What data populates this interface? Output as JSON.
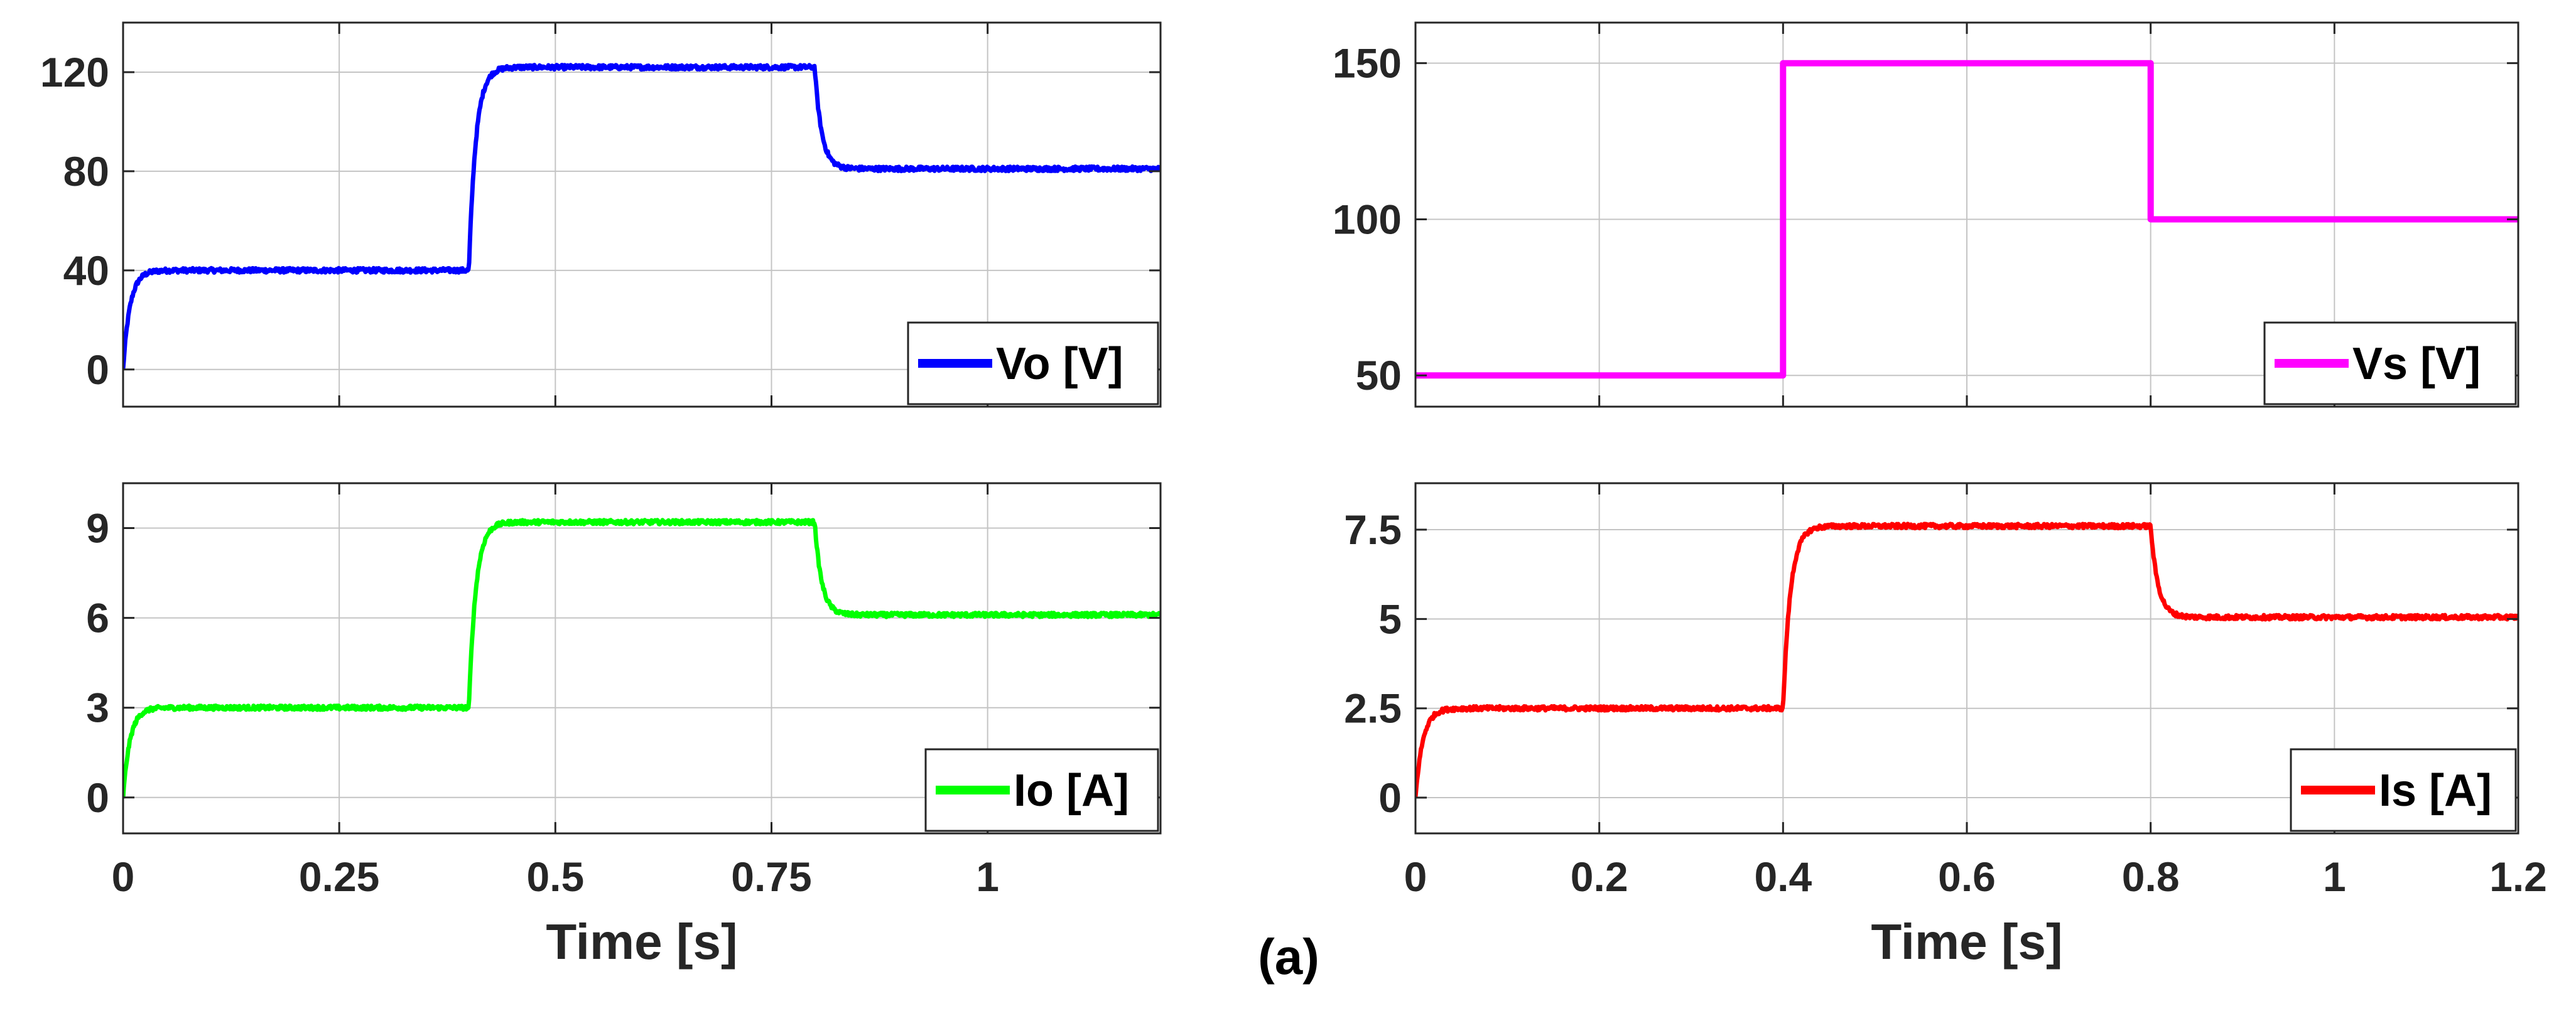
{
  "figure_caption": "(a)",
  "chart_data": [
    {
      "type": "line",
      "id": "vo",
      "color": "#0000ff",
      "legend": "Vo [V]",
      "legend_position": "bottom-right",
      "grid": true,
      "xlabel": "",
      "xlim": [
        0,
        1.2
      ],
      "xticks": [
        0,
        0.25,
        0.5,
        0.75,
        1
      ],
      "xtick_labels_shown": false,
      "ylim": [
        -15,
        140
      ],
      "yticks": [
        0,
        40,
        80,
        120
      ],
      "ytick_labels": [
        "0",
        "40",
        "80",
        "120"
      ],
      "segments": [
        {
          "t_start": 0,
          "t_end": 0.4,
          "from": 0,
          "to": 40,
          "tau": 0.008
        },
        {
          "t_start": 0.4,
          "t_end": 0.8,
          "from": 40,
          "to": 122,
          "tau": 0.008
        },
        {
          "t_start": 0.8,
          "t_end": 1.2,
          "from": 122,
          "to": 81,
          "tau": 0.008
        }
      ],
      "noise": 0.9
    },
    {
      "type": "line",
      "id": "vs",
      "color": "#ff00ff",
      "legend": "Vs [V]",
      "legend_position": "bottom-right",
      "grid": true,
      "xlabel": "",
      "xlim": [
        0,
        1.2
      ],
      "xticks": [
        0,
        0.2,
        0.4,
        0.6,
        0.8,
        1,
        1.2
      ],
      "xtick_labels_shown": false,
      "ylim": [
        40,
        163
      ],
      "yticks": [
        50,
        100,
        150
      ],
      "ytick_labels": [
        "50",
        "100",
        "150"
      ],
      "segments": [
        {
          "t_start": 0,
          "t_end": 0.4,
          "from": 50,
          "to": 50,
          "tau": 0
        },
        {
          "t_start": 0.4,
          "t_end": 0.8,
          "from": 150,
          "to": 150,
          "tau": 0
        },
        {
          "t_start": 0.8,
          "t_end": 1.2,
          "from": 100,
          "to": 100,
          "tau": 0
        }
      ],
      "noise": 0
    },
    {
      "type": "line",
      "id": "io",
      "color": "#00ff00",
      "legend": "Io [A]",
      "legend_position": "bottom-right",
      "grid": true,
      "xlabel": "Time [s]",
      "xlim": [
        0,
        1.2
      ],
      "xticks": [
        0,
        0.25,
        0.5,
        0.75,
        1
      ],
      "xtick_labels": [
        "0",
        "0.25",
        "0.5",
        "0.75",
        "1"
      ],
      "xtick_labels_shown": true,
      "ylim": [
        -1.2,
        10.5
      ],
      "yticks": [
        0,
        3,
        6,
        9
      ],
      "ytick_labels": [
        "0",
        "3",
        "6",
        "9"
      ],
      "segments": [
        {
          "t_start": 0,
          "t_end": 0.4,
          "from": 0,
          "to": 3,
          "tau": 0.008
        },
        {
          "t_start": 0.4,
          "t_end": 0.8,
          "from": 3,
          "to": 9.2,
          "tau": 0.008
        },
        {
          "t_start": 0.8,
          "t_end": 1.2,
          "from": 9.2,
          "to": 6.1,
          "tau": 0.008
        }
      ],
      "noise": 0.07
    },
    {
      "type": "line",
      "id": "is",
      "color": "#ff0000",
      "legend": "Is [A]",
      "legend_position": "bottom-right",
      "grid": true,
      "xlabel": "Time [s]",
      "xlim": [
        0,
        1.2
      ],
      "xticks": [
        0,
        0.2,
        0.4,
        0.6,
        0.8,
        1,
        1.2
      ],
      "xtick_labels": [
        "0",
        "0.2",
        "0.4",
        "0.6",
        "0.8",
        "1",
        "1.2"
      ],
      "xtick_labels_shown": true,
      "ylim": [
        -1,
        8.8
      ],
      "yticks": [
        0,
        2.5,
        5,
        7.5
      ],
      "ytick_labels": [
        "0",
        "2.5",
        "5",
        "7.5"
      ],
      "segments": [
        {
          "t_start": 0,
          "t_end": 0.4,
          "from": 0,
          "to": 2.5,
          "tau": 0.008
        },
        {
          "t_start": 0.4,
          "t_end": 0.8,
          "from": 2.5,
          "to": 7.6,
          "tau": 0.008
        },
        {
          "t_start": 0.8,
          "t_end": 1.2,
          "from": 7.6,
          "to": 5.05,
          "tau": 0.008
        }
      ],
      "noise": 0.06
    }
  ]
}
